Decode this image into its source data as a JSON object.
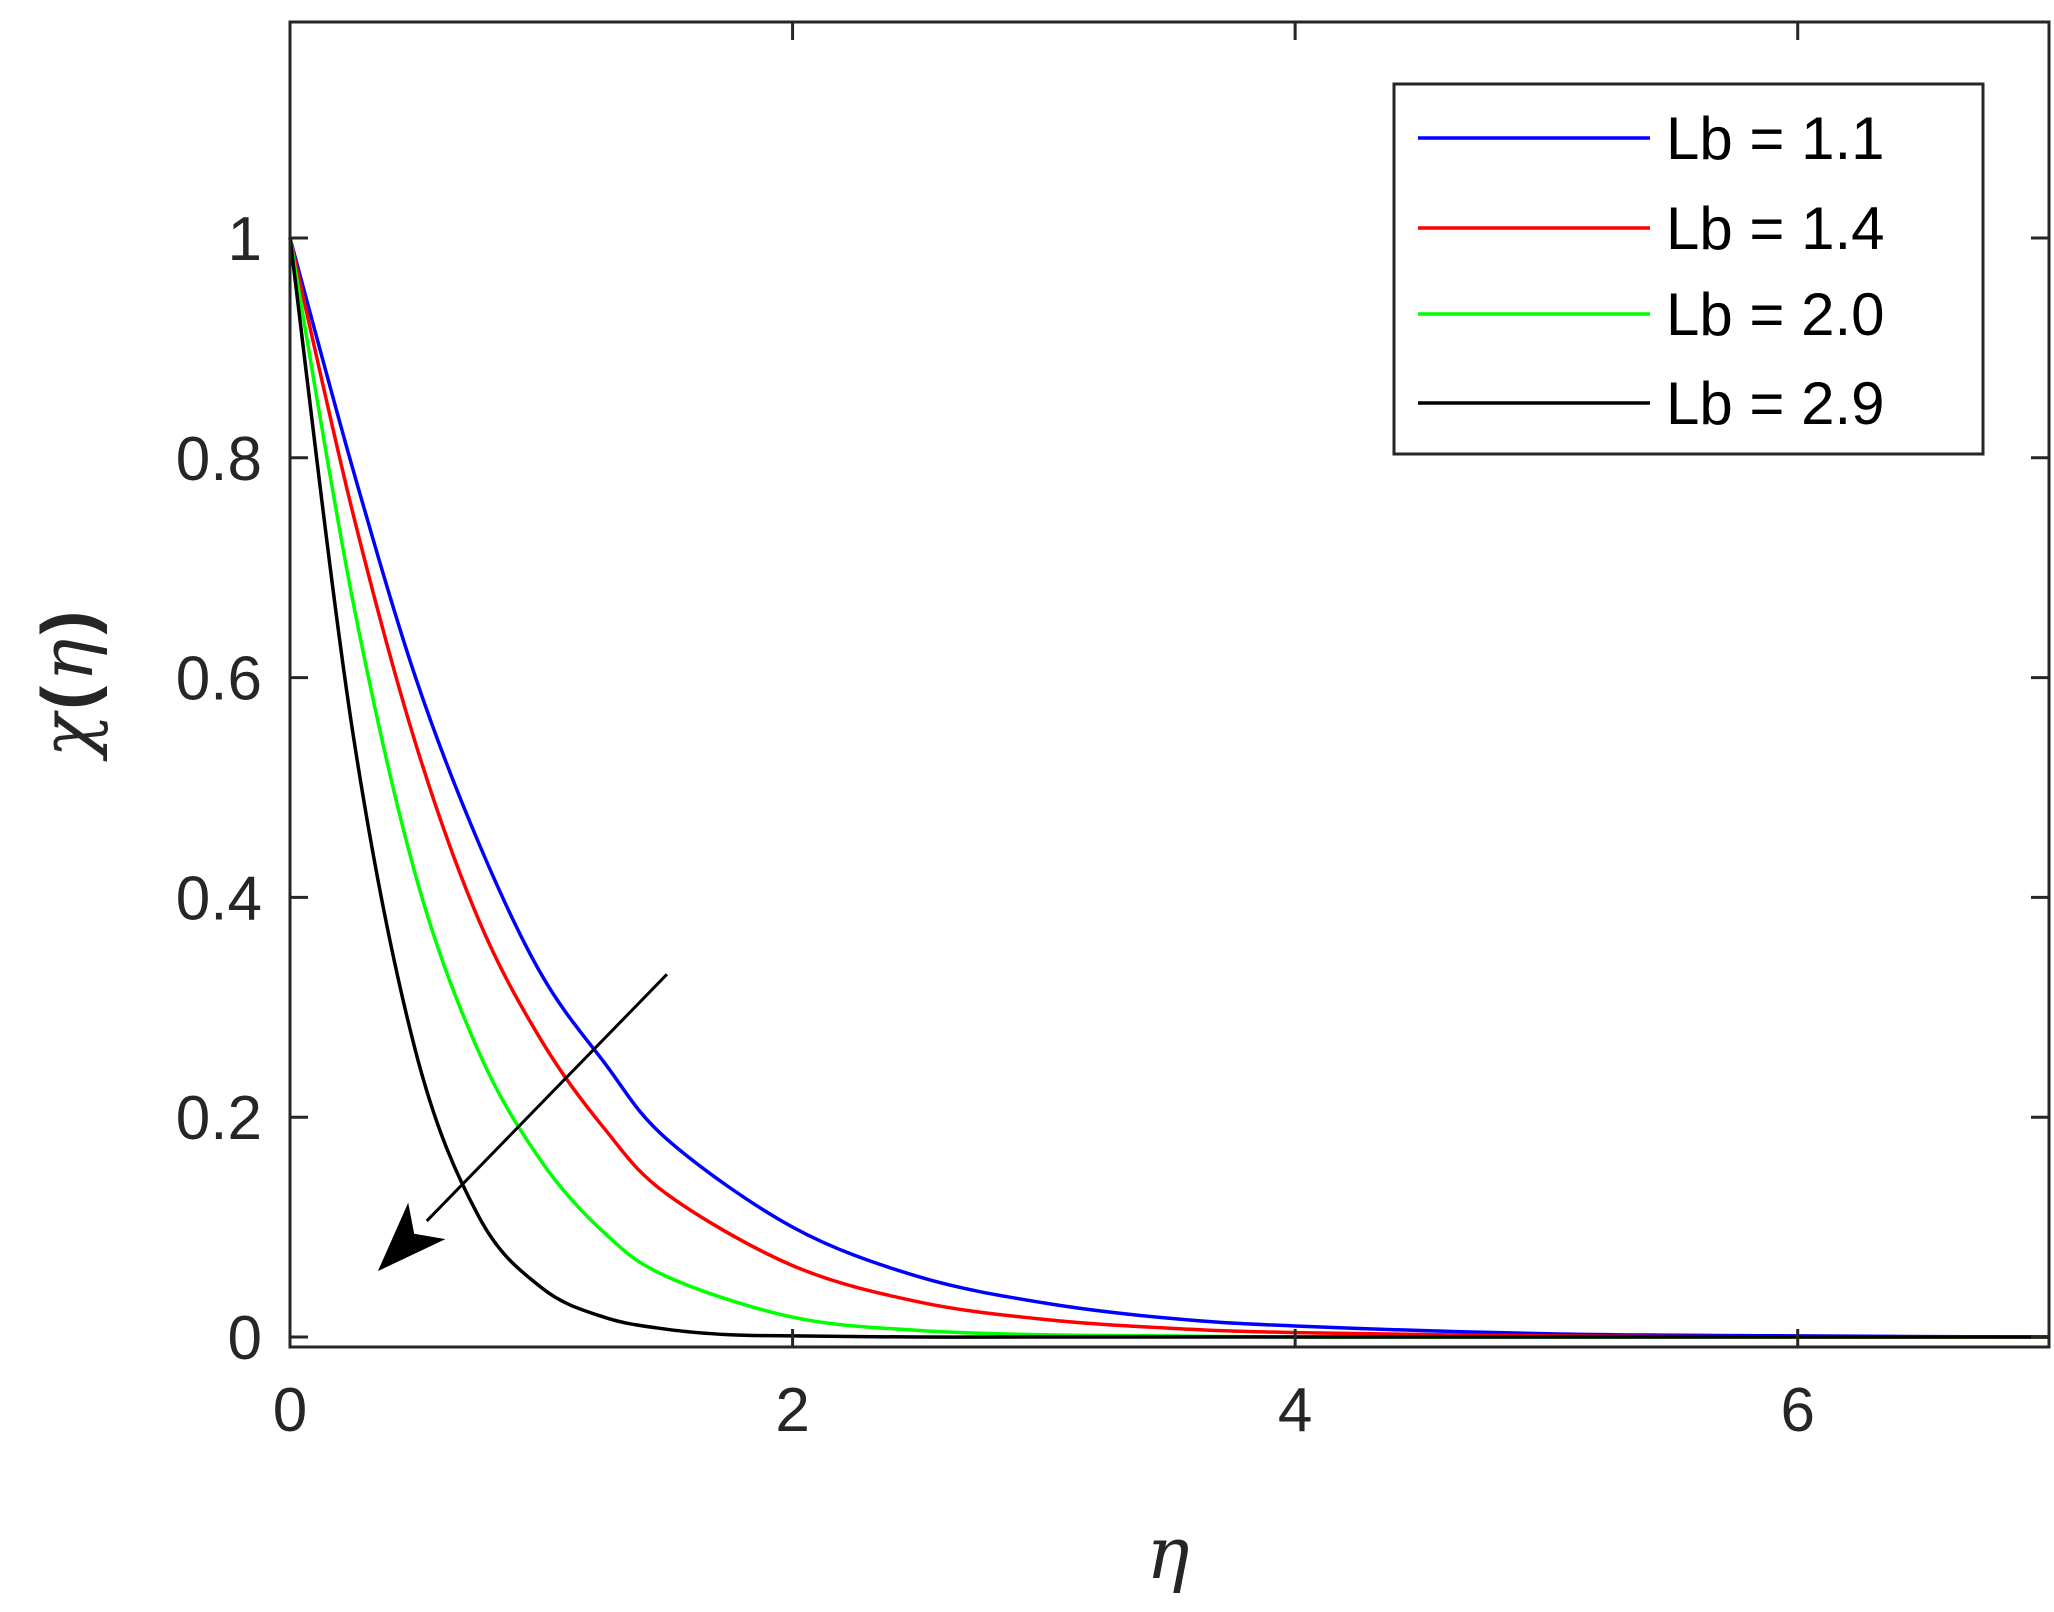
{
  "chart_data": {
    "type": "line",
    "xlabel": "η",
    "ylabel": {
      "symbol": "χ",
      "open": "(",
      "arg": "η",
      "close": ")"
    },
    "xlim": [
      0,
      7
    ],
    "ylim": [
      0,
      1.2
    ],
    "xticks": [
      0,
      2,
      4,
      6
    ],
    "xtick_labels": [
      "0",
      "2",
      "4",
      "6"
    ],
    "yticks": [
      0,
      0.2,
      0.4,
      0.6,
      0.8,
      1.0
    ],
    "ytick_labels": [
      "0",
      "0.2",
      "0.4",
      "0.6",
      "0.8",
      "1"
    ],
    "grid": false,
    "legend_position": "top-right",
    "series": [
      {
        "name": "Lb = 1.1",
        "color": "#0000ff",
        "x": [
          0,
          0.25,
          0.5,
          0.75,
          1.0,
          1.25,
          1.5,
          2.0,
          2.5,
          3.0,
          3.5,
          4.0,
          5.0,
          6.0,
          7.0
        ],
        "y": [
          1.0,
          0.79,
          0.6,
          0.45,
          0.33,
          0.25,
          0.18,
          0.1,
          0.055,
          0.031,
          0.017,
          0.01,
          0.003,
          0.001,
          0.0
        ]
      },
      {
        "name": "Lb = 1.4",
        "color": "#ff0000",
        "x": [
          0,
          0.25,
          0.5,
          0.75,
          1.0,
          1.25,
          1.5,
          2.0,
          2.5,
          3.0,
          3.5,
          4.0,
          5.0,
          6.0,
          7.0
        ],
        "y": [
          1.0,
          0.75,
          0.54,
          0.38,
          0.27,
          0.19,
          0.13,
          0.065,
          0.032,
          0.016,
          0.008,
          0.004,
          0.001,
          0.0,
          0.0
        ]
      },
      {
        "name": "Lb = 2.0",
        "color": "#00ff00",
        "x": [
          0,
          0.25,
          0.5,
          0.75,
          1.0,
          1.25,
          1.5,
          2.0,
          2.5,
          3.0,
          3.5,
          4.0,
          5.0,
          6.0,
          7.0
        ],
        "y": [
          1.0,
          0.67,
          0.42,
          0.26,
          0.16,
          0.095,
          0.055,
          0.018,
          0.006,
          0.002,
          0.001,
          0.0,
          0.0,
          0.0,
          0.0
        ]
      },
      {
        "name": "Lb = 2.9",
        "color": "#000000",
        "x": [
          0,
          0.25,
          0.5,
          0.75,
          1.0,
          1.25,
          1.5,
          1.75,
          2.0,
          2.5,
          3.0,
          4.0,
          5.0,
          6.0,
          7.0
        ],
        "y": [
          1.0,
          0.55,
          0.26,
          0.11,
          0.045,
          0.018,
          0.007,
          0.002,
          0.001,
          0.0,
          0.0,
          0.0,
          0.0,
          0.0,
          0.0
        ]
      }
    ],
    "annotation": {
      "type": "arrow",
      "meaning": "increasing Lb",
      "from": [
        1.5,
        0.33
      ],
      "to": [
        0.35,
        0.06
      ]
    }
  }
}
